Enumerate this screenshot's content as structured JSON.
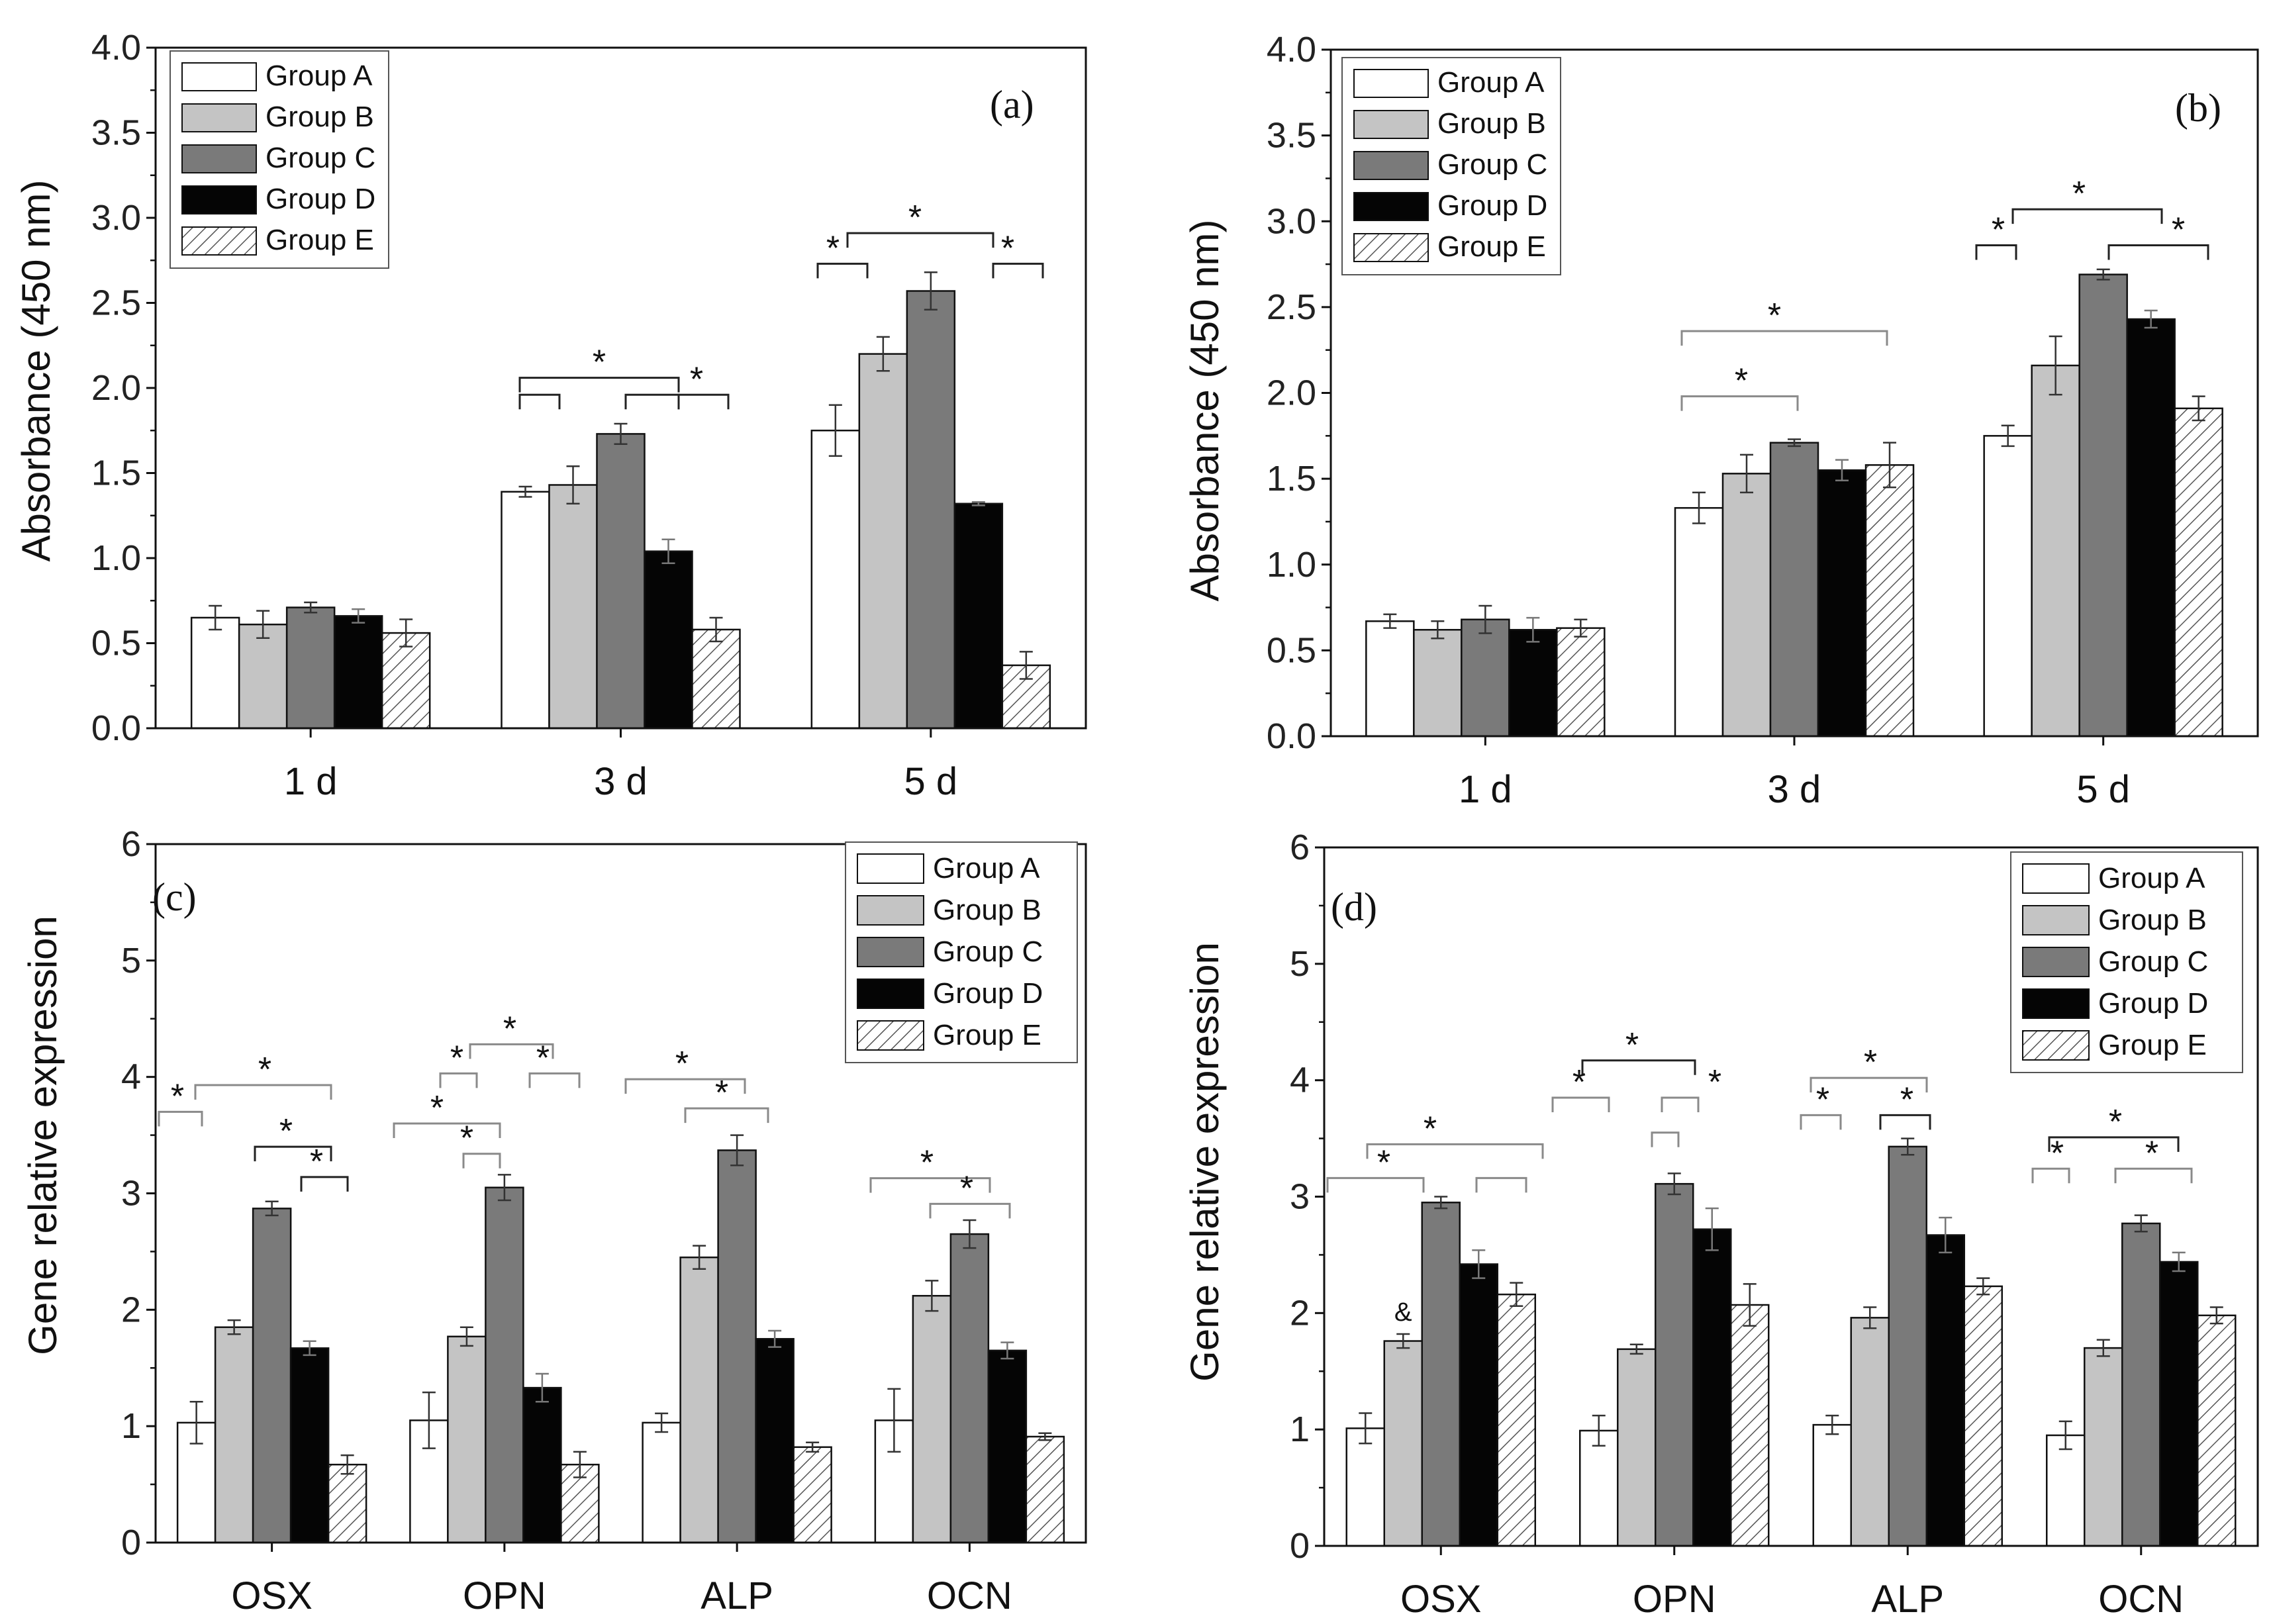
{
  "chart_data": [
    {
      "type": "bar",
      "panel": "(a)",
      "title": "",
      "xlabel": "",
      "ylabel": "Absorbance (450 nm)",
      "ylim": [
        0,
        4.0
      ],
      "yticks": [
        "0.0",
        "0.5",
        "1.0",
        "1.5",
        "2.0",
        "2.5",
        "3.0",
        "3.5",
        "4.0"
      ],
      "categories": [
        "1 d",
        "3 d",
        "5 d"
      ],
      "legend": [
        "Group A",
        "Group B",
        "Group C",
        "Group D",
        "Group E"
      ],
      "legend_position": "top-left",
      "series": [
        {
          "name": "Group A",
          "values": [
            0.65,
            1.39,
            1.75
          ],
          "errors": [
            0.07,
            0.03,
            0.15
          ]
        },
        {
          "name": "Group B",
          "values": [
            0.61,
            1.43,
            2.2
          ],
          "errors": [
            0.08,
            0.11,
            0.1
          ]
        },
        {
          "name": "Group C",
          "values": [
            0.71,
            1.73,
            2.57
          ],
          "errors": [
            0.03,
            0.06,
            0.11
          ]
        },
        {
          "name": "Group D",
          "values": [
            0.66,
            1.04,
            1.32
          ],
          "errors": [
            0.04,
            0.07,
            0.01
          ]
        },
        {
          "name": "Group E",
          "values": [
            0.56,
            0.58,
            0.37
          ],
          "errors": [
            0.08,
            0.07,
            0.08
          ]
        }
      ],
      "significance_marker": "*",
      "annotations": [
        "*",
        "*",
        "*",
        "*",
        "*"
      ]
    },
    {
      "type": "bar",
      "panel": "(b)",
      "title": "",
      "xlabel": "",
      "ylabel": "Absorbance (450 nm)",
      "ylim": [
        0,
        4.0
      ],
      "yticks": [
        "0.0",
        "0.5",
        "1.0",
        "1.5",
        "2.0",
        "2.5",
        "3.0",
        "3.5",
        "4.0"
      ],
      "categories": [
        "1 d",
        "3 d",
        "5 d"
      ],
      "legend": [
        "Group A",
        "Group B",
        "Group C",
        "Group D",
        "Group E"
      ],
      "legend_position": "top-left",
      "series": [
        {
          "name": "Group A",
          "values": [
            0.67,
            1.33,
            1.75
          ],
          "errors": [
            0.04,
            0.09,
            0.06
          ]
        },
        {
          "name": "Group B",
          "values": [
            0.62,
            1.53,
            2.16
          ],
          "errors": [
            0.05,
            0.11,
            0.17
          ]
        },
        {
          "name": "Group C",
          "values": [
            0.68,
            1.71,
            2.69
          ],
          "errors": [
            0.08,
            0.02,
            0.03
          ]
        },
        {
          "name": "Group D",
          "values": [
            0.62,
            1.55,
            2.43
          ],
          "errors": [
            0.07,
            0.06,
            0.05
          ]
        },
        {
          "name": "Group E",
          "values": [
            0.63,
            1.58,
            1.91
          ],
          "errors": [
            0.05,
            0.13,
            0.07
          ]
        }
      ],
      "significance_marker": "*",
      "annotations": [
        "*",
        "*",
        "*",
        "*",
        "*"
      ]
    },
    {
      "type": "bar",
      "panel": "(c)",
      "title": "",
      "xlabel": "",
      "ylabel": "Gene relative expression",
      "ylim": [
        0,
        6
      ],
      "yticks": [
        "0",
        "1",
        "2",
        "3",
        "4",
        "5",
        "6"
      ],
      "categories": [
        "OSX",
        "OPN",
        "ALP",
        "OCN"
      ],
      "legend": [
        "Group A",
        "Group B",
        "Group C",
        "Group D",
        "Group E"
      ],
      "legend_position": "top-right",
      "series": [
        {
          "name": "Group A",
          "values": [
            1.03,
            1.05,
            1.03,
            1.05
          ],
          "errors": [
            0.18,
            0.24,
            0.08,
            0.27
          ]
        },
        {
          "name": "Group B",
          "values": [
            1.85,
            1.77,
            2.45,
            2.12
          ],
          "errors": [
            0.06,
            0.08,
            0.1,
            0.13
          ]
        },
        {
          "name": "Group C",
          "values": [
            2.87,
            3.05,
            3.37,
            2.65
          ],
          "errors": [
            0.06,
            0.11,
            0.13,
            0.12
          ]
        },
        {
          "name": "Group D",
          "values": [
            1.67,
            1.33,
            1.75,
            1.65
          ],
          "errors": [
            0.06,
            0.12,
            0.07,
            0.07
          ]
        },
        {
          "name": "Group E",
          "values": [
            0.67,
            0.67,
            0.82,
            0.91
          ],
          "errors": [
            0.08,
            0.11,
            0.04,
            0.03
          ]
        }
      ],
      "significance_marker": "*",
      "annotations": [
        "*",
        "*",
        "*",
        "*",
        "*",
        "*",
        "*",
        "*",
        "*",
        "*",
        "*",
        "*",
        "*"
      ]
    },
    {
      "type": "bar",
      "panel": "(d)",
      "title": "",
      "xlabel": "",
      "ylabel": "Gene relative expression",
      "ylim": [
        0,
        6
      ],
      "yticks": [
        "0",
        "1",
        "2",
        "3",
        "4",
        "5",
        "6"
      ],
      "categories": [
        "OSX",
        "OPN",
        "ALP",
        "OCN"
      ],
      "legend": [
        "Group A",
        "Group B",
        "Group C",
        "Group D",
        "Group E"
      ],
      "legend_position": "top-right",
      "series": [
        {
          "name": "Group A",
          "values": [
            1.01,
            0.99,
            1.04,
            0.95
          ],
          "errors": [
            0.13,
            0.13,
            0.08,
            0.12
          ]
        },
        {
          "name": "Group B",
          "values": [
            1.76,
            1.69,
            1.96,
            1.7
          ],
          "errors": [
            0.06,
            0.04,
            0.09,
            0.07
          ]
        },
        {
          "name": "Group C",
          "values": [
            2.95,
            3.11,
            3.43,
            2.77
          ],
          "errors": [
            0.05,
            0.09,
            0.07,
            0.07
          ]
        },
        {
          "name": "Group D",
          "values": [
            2.42,
            2.72,
            2.67,
            2.44
          ],
          "errors": [
            0.12,
            0.18,
            0.15,
            0.08
          ]
        },
        {
          "name": "Group E",
          "values": [
            2.16,
            2.07,
            2.23,
            1.98
          ],
          "errors": [
            0.1,
            0.18,
            0.07,
            0.07
          ]
        }
      ],
      "significance_marker": "*",
      "annotations": [
        "*",
        "*",
        "*",
        "*",
        "*",
        "*",
        "*",
        "*",
        "*",
        "*",
        "*",
        "*"
      ],
      "special_marker": "&"
    }
  ],
  "styles": {
    "fills": [
      "#ffffff",
      "#c4c4c4",
      "#7a7a7a",
      "#050505",
      "hatch"
    ],
    "axis_color": "#111111",
    "bracket_color": "#222222",
    "bracket_light_color": "#8a8a8a"
  }
}
